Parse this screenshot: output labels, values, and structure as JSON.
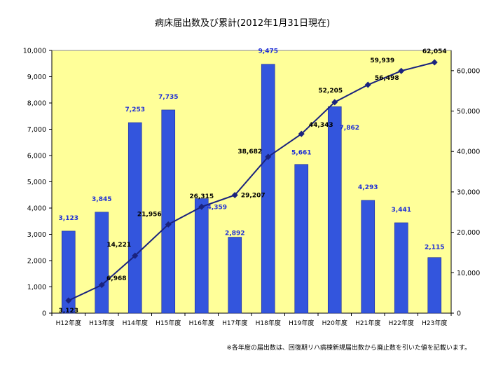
{
  "chart_data": {
    "type": "bar",
    "title": "病床届出数及び累計(2012年1月31日現在)",
    "categories": [
      "H12年度",
      "H13年度",
      "H14年度",
      "H15年度",
      "H16年度",
      "H17年度",
      "H18年度",
      "H19年度",
      "H20年度",
      "H21年度",
      "H22年度",
      "H23年度"
    ],
    "series": [
      {
        "type": "bar",
        "axis": "left",
        "values": [
          3123,
          3845,
          7253,
          7735,
          4359,
          2892,
          9475,
          5661,
          7862,
          4293,
          3441,
          2115
        ],
        "labels": [
          "3,123",
          "3,845",
          "7,253",
          "7,735",
          "4,359",
          "2,892",
          "9,475",
          "5,661",
          "7,862",
          "4,293",
          "3,441",
          "2,115"
        ]
      },
      {
        "type": "line",
        "axis": "right",
        "values": [
          3123,
          6968,
          14221,
          21956,
          26315,
          29207,
          38682,
          44343,
          52205,
          56498,
          59939,
          62054
        ],
        "labels": [
          "3,123",
          "6,968",
          "14,221",
          "21,956",
          "26,315",
          "29,207",
          "38,682",
          "44,343",
          "52,205",
          "56,498",
          "59,939",
          "62,054"
        ]
      }
    ],
    "y_left": {
      "ylim": [
        0,
        10000
      ],
      "ticks": [
        "0",
        "1,000",
        "2,000",
        "3,000",
        "4,000",
        "5,000",
        "6,000",
        "7,000",
        "8,000",
        "9,000",
        "10,000"
      ]
    },
    "y_right": {
      "ylim": [
        0,
        65000
      ],
      "ticks": [
        "0",
        "10,000",
        "20,000",
        "30,000",
        "40,000",
        "50,000",
        "60,000"
      ]
    },
    "note": "※各年度の届出数は、回復期リハ病棟新規届出数から廃止数を引いた値を記載います。",
    "colors": {
      "plot_bg": "#ffff99",
      "bar": "#3355dd",
      "line": "#1a237e",
      "bar_label": "#1f2fd6"
    }
  }
}
